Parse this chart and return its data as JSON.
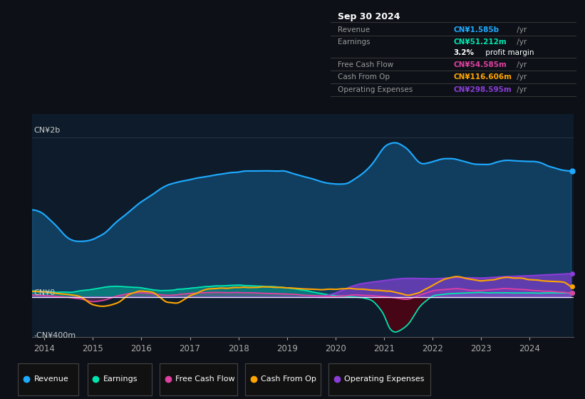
{
  "bg_color": "#0d1117",
  "plot_bg_color": "#0d1b2a",
  "plot_bg_upper": "#111d2e",
  "y_label_top": "CN¥2b",
  "y_label_zero": "CN¥0",
  "y_label_neg": "-CN¥400m",
  "x_ticks": [
    2014,
    2015,
    2016,
    2017,
    2018,
    2019,
    2020,
    2021,
    2022,
    2023,
    2024
  ],
  "ylim_min": -500,
  "ylim_max": 2300,
  "revenue_color": "#1eaaff",
  "earnings_color": "#00e5b0",
  "fcf_color": "#e040a0",
  "cashfromop_color": "#ffa500",
  "opex_color": "#8b3dd8",
  "opex_fill_color": "#7b2fc0",
  "earnings_neg_color": "#6b1020",
  "legend_items": [
    "Revenue",
    "Earnings",
    "Free Cash Flow",
    "Cash From Op",
    "Operating Expenses"
  ],
  "info_box": {
    "date": "Sep 30 2024",
    "revenue_label": "Revenue",
    "revenue_val": "CN¥1.585b",
    "revenue_suffix": " /yr",
    "earnings_label": "Earnings",
    "earnings_val": "CN¥51.212m",
    "earnings_suffix": " /yr",
    "profit_margin": "3.2% profit margin",
    "fcf_label": "Free Cash Flow",
    "fcf_val": "CN¥54.585m",
    "fcf_suffix": " /yr",
    "cop_label": "Cash From Op",
    "cop_val": "CN¥116.606m",
    "cop_suffix": " /yr",
    "opex_label": "Operating Expenses",
    "opex_val": "CN¥298.595m",
    "opex_suffix": " /yr"
  }
}
